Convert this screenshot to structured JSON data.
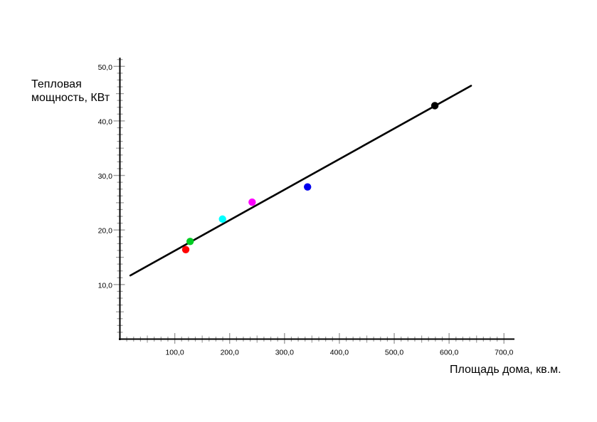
{
  "chart_data": {
    "type": "scatter",
    "title": "",
    "xlabel": "Площадь дома, кв.м.",
    "ylabel": "Тепловая мощность, КВт",
    "ylabel_line1": "Тепловая",
    "ylabel_line2": "мощность, КВт",
    "xlim": [
      0,
      720
    ],
    "ylim": [
      0,
      51.5
    ],
    "x_major_unit": 100,
    "x_medium_unit": 50,
    "x_minor_unit": 12.5,
    "y_major_unit": 10,
    "y_medium_unit": 5,
    "y_minor_unit": 1.25,
    "x_tick_max": 700,
    "y_tick_max": 51.25,
    "x_tick_labels": [
      "100,0",
      "200,0",
      "300,0",
      "400,0",
      "500,0",
      "600,0",
      "700,0"
    ],
    "y_tick_labels": [
      "10,0",
      "20,0",
      "30,0",
      "40,0",
      "50,0"
    ],
    "grid": false,
    "legend_position": "none",
    "series": [
      {
        "name": "point-red",
        "color": "#ff0000",
        "x": 120,
        "y": 16.4
      },
      {
        "name": "point-green",
        "color": "#00cc22",
        "x": 128,
        "y": 17.9
      },
      {
        "name": "point-cyan",
        "color": "#00ffff",
        "x": 187,
        "y": 22.0
      },
      {
        "name": "point-magenta",
        "color": "#ff00ff",
        "x": 241,
        "y": 25.1
      },
      {
        "name": "point-blue",
        "color": "#0000ee",
        "x": 342,
        "y": 27.9
      },
      {
        "name": "point-black",
        "color": "#000000",
        "x": 574,
        "y": 42.8
      }
    ],
    "trendline": {
      "slope": 0.056,
      "intercept": 10.6,
      "x_start": 19,
      "x_end": 640,
      "color": "#000000"
    },
    "marker_radius": 5.2,
    "axis_color": "#000000",
    "tick_color": "#9e9e9e",
    "label_color": "#000000",
    "background_color": "#ffffff"
  }
}
